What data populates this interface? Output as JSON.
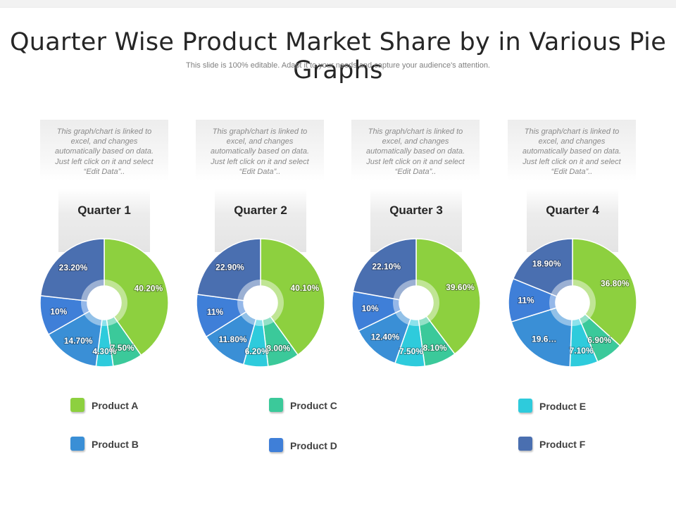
{
  "header": {
    "title": "Quarter Wise Product Market Share by in Various Pie Graphs",
    "subtitle": "This slide is 100% editable. Adapt it to your needs and capture your audience's attention."
  },
  "note_text": "This graph/chart is linked to excel, and changes automatically based on data. Just left click on it and select “Edit Data”..",
  "colors": {
    "Product A": "#8dd03f",
    "Product B": "#3a8fd6",
    "Product C": "#3bc99a",
    "Product D": "#3f7fd8",
    "Product E": "#2ecbdc",
    "Product F": "#4a6fb0"
  },
  "legend": [
    {
      "label": "Product A",
      "color": "#8dd03f"
    },
    {
      "label": "Product B",
      "color": "#3a8fd6"
    },
    {
      "label": "Product C",
      "color": "#3bc99a"
    },
    {
      "label": "Product D",
      "color": "#3f7fd8"
    },
    {
      "label": "Product E",
      "color": "#2ecbdc"
    },
    {
      "label": "Product F",
      "color": "#4a6fb0"
    }
  ],
  "chart_data": [
    {
      "type": "pie",
      "title": "Quarter 1",
      "categories": [
        "Product A",
        "Product C",
        "Product E",
        "Product B",
        "Product D",
        "Product F"
      ],
      "values": [
        40.2,
        7.5,
        4.3,
        14.7,
        10,
        23.2
      ],
      "labels": [
        "40.20%",
        "7.50%",
        "4.30%",
        "14.70%",
        "10%",
        "23.20%"
      ]
    },
    {
      "type": "pie",
      "title": "Quarter 2",
      "categories": [
        "Product A",
        "Product C",
        "Product E",
        "Product B",
        "Product D",
        "Product F"
      ],
      "values": [
        40.1,
        8.0,
        6.2,
        11.8,
        11,
        22.9
      ],
      "labels": [
        "40.10%",
        "8.00%",
        "6.20%",
        "11.80%",
        "11%",
        "22.90%"
      ]
    },
    {
      "type": "pie",
      "title": "Quarter 3",
      "categories": [
        "Product A",
        "Product C",
        "Product E",
        "Product B",
        "Product D",
        "Product F"
      ],
      "values": [
        39.6,
        8.1,
        7.5,
        12.4,
        10,
        22.1
      ],
      "labels": [
        "39.60%",
        "8.10%",
        "7.50%",
        "12.40%",
        "10%",
        "22.10%"
      ]
    },
    {
      "type": "pie",
      "title": "Quarter 4",
      "categories": [
        "Product A",
        "Product C",
        "Product E",
        "Product B",
        "Product D",
        "Product F"
      ],
      "values": [
        36.8,
        6.9,
        7.1,
        19.6,
        11,
        18.9
      ],
      "labels": [
        "36.80%",
        "6.90%",
        "7.10%",
        "19.6…",
        "11%",
        "18.90%"
      ]
    }
  ]
}
